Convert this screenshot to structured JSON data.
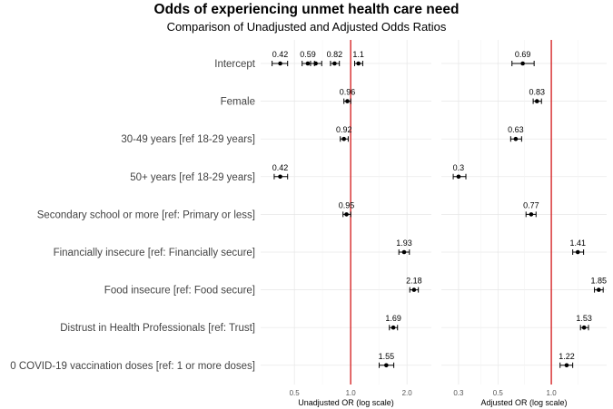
{
  "chart_data": {
    "type": "forest",
    "title": "Odds of experiencing unmet health care need",
    "subtitle": "Comparison of Unadjusted and Adjusted Odds Ratios",
    "row_labels": [
      "Intercept",
      "Female",
      "30-49 years [ref 18-29 years]",
      "50+ years [ref 18-29 years]",
      "Secondary school or more [ref: Primary or less]",
      "Financially insecure [ref: Financially secure]",
      "Food insecure [ref: Food secure]",
      "Distrust in Health Professionals [ref: Trust]",
      "0 COVID-19 vaccination doses [ref: 1 or more doses]"
    ],
    "reference_value": 1.0,
    "panels": [
      {
        "name": "unadjusted",
        "xlabel": "Unadjusted OR (log scale)",
        "xlim": [
          0.33,
          2.7
        ],
        "ticks": [
          0.5,
          1.0,
          2.0
        ],
        "tick_labels": [
          "0.5",
          "1.0",
          "2.0"
        ],
        "minor_ticks": [
          0.707,
          1.414
        ],
        "points": [
          {
            "row": 0,
            "or": 0.42,
            "lo": 0.38,
            "hi": 0.46,
            "label": "0.42"
          },
          {
            "row": 0,
            "or": 0.59,
            "lo": 0.55,
            "hi": 0.64,
            "label": "0.59"
          },
          {
            "row": 0,
            "or": 0.65,
            "lo": 0.61,
            "hi": 0.7,
            "label": ""
          },
          {
            "row": 0,
            "or": 0.82,
            "lo": 0.78,
            "hi": 0.87,
            "label": "0.82"
          },
          {
            "row": 0,
            "or": 1.1,
            "lo": 1.05,
            "hi": 1.16,
            "label": "1.1"
          },
          {
            "row": 1,
            "or": 0.96,
            "lo": 0.92,
            "hi": 1.0,
            "label": "0.96"
          },
          {
            "row": 2,
            "or": 0.92,
            "lo": 0.88,
            "hi": 0.97,
            "label": "0.92"
          },
          {
            "row": 3,
            "or": 0.42,
            "lo": 0.39,
            "hi": 0.46,
            "label": "0.42"
          },
          {
            "row": 4,
            "or": 0.95,
            "lo": 0.91,
            "hi": 1.0,
            "label": "0.95"
          },
          {
            "row": 5,
            "or": 1.93,
            "lo": 1.81,
            "hi": 2.06,
            "label": "1.93"
          },
          {
            "row": 6,
            "or": 2.18,
            "lo": 2.07,
            "hi": 2.3,
            "label": "2.18"
          },
          {
            "row": 7,
            "or": 1.69,
            "lo": 1.61,
            "hi": 1.78,
            "label": "1.69"
          },
          {
            "row": 8,
            "or": 1.55,
            "lo": 1.42,
            "hi": 1.7,
            "label": "1.55"
          }
        ]
      },
      {
        "name": "adjusted",
        "xlabel": "Adjusted OR (log scale)",
        "xlim": [
          0.24,
          2.05
        ],
        "ticks": [
          0.3,
          0.5,
          1.0
        ],
        "tick_labels": [
          "0.3",
          "0.5",
          "1.0"
        ],
        "minor_ticks": [
          0.4,
          0.707,
          1.414
        ],
        "points": [
          {
            "row": 0,
            "or": 0.69,
            "lo": 0.6,
            "hi": 0.8,
            "label": "0.69"
          },
          {
            "row": 1,
            "or": 0.83,
            "lo": 0.79,
            "hi": 0.88,
            "label": "0.83"
          },
          {
            "row": 2,
            "or": 0.63,
            "lo": 0.59,
            "hi": 0.68,
            "label": "0.63"
          },
          {
            "row": 3,
            "or": 0.3,
            "lo": 0.28,
            "hi": 0.33,
            "label": "0.3"
          },
          {
            "row": 4,
            "or": 0.77,
            "lo": 0.72,
            "hi": 0.82,
            "label": "0.77"
          },
          {
            "row": 5,
            "or": 1.41,
            "lo": 1.32,
            "hi": 1.52,
            "label": "1.41"
          },
          {
            "row": 6,
            "or": 1.85,
            "lo": 1.75,
            "hi": 1.96,
            "label": "1.85"
          },
          {
            "row": 7,
            "or": 1.53,
            "lo": 1.46,
            "hi": 1.62,
            "label": "1.53"
          },
          {
            "row": 8,
            "or": 1.22,
            "lo": 1.12,
            "hi": 1.32,
            "label": "1.22"
          }
        ]
      }
    ]
  }
}
